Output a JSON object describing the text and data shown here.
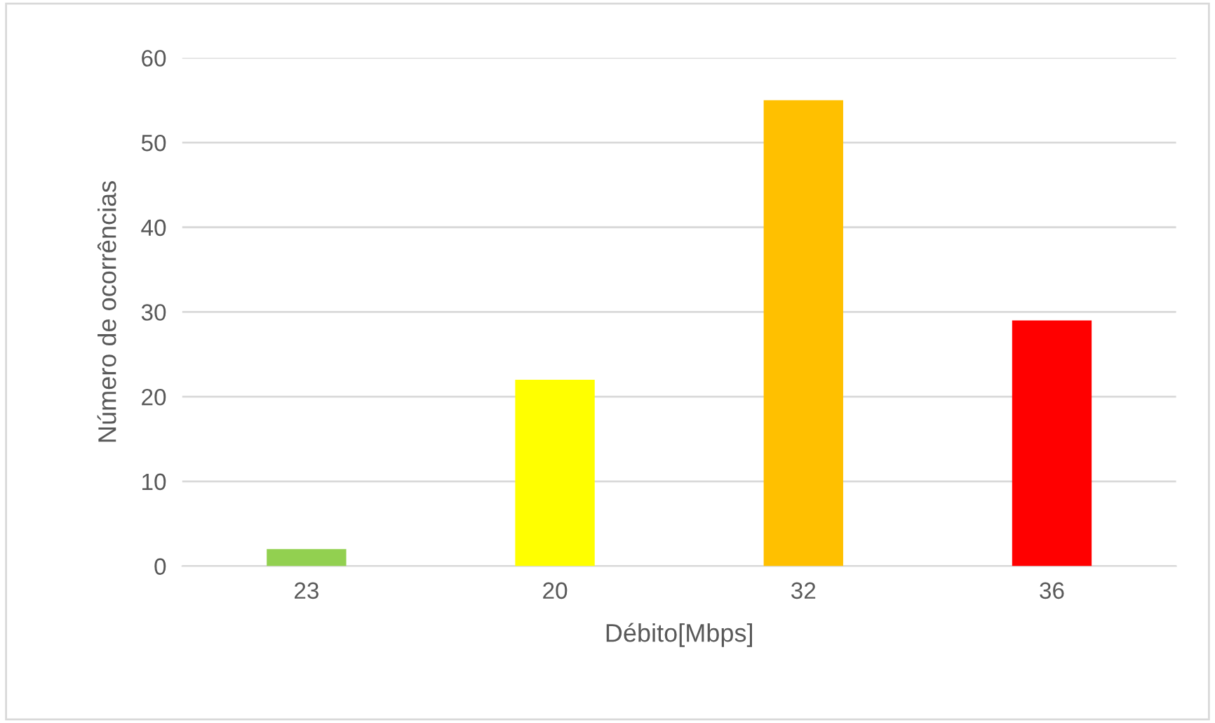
{
  "chart_data": {
    "type": "bar",
    "xlabel": "Débito[Mbps]",
    "ylabel": "Número de ocorrências",
    "categories": [
      "23",
      "20",
      "32",
      "36"
    ],
    "values": [
      2,
      22,
      55,
      29
    ],
    "colors": [
      "#92d050",
      "#ffff00",
      "#ffc000",
      "#ff0000"
    ],
    "ylim": [
      0,
      60
    ],
    "yticks": [
      0,
      10,
      20,
      30,
      40,
      50,
      60
    ],
    "grid": "y"
  }
}
